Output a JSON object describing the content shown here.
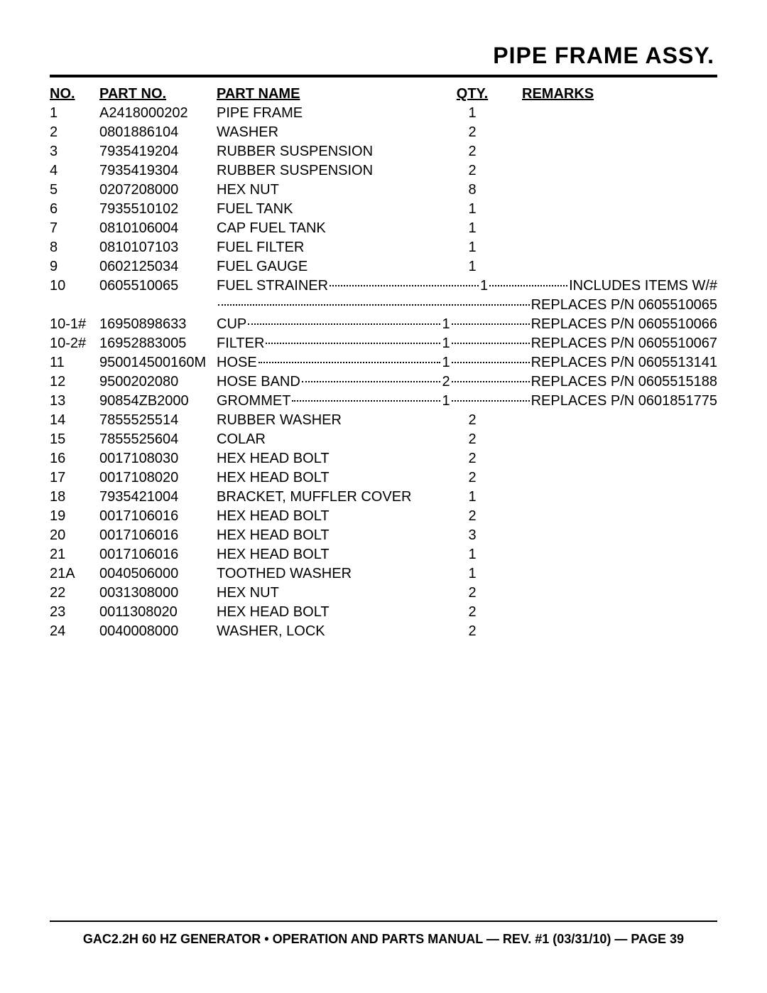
{
  "title": "PIPE FRAME ASSY.",
  "headers": {
    "no": "NO.",
    "partNo": "PART NO.",
    "partName": "PART NAME",
    "qty": "QTY.",
    "remarks": "REMARKS"
  },
  "rows": [
    {
      "no": "1",
      "pn": "A2418000202",
      "name": "PIPE FRAME",
      "qty": "1"
    },
    {
      "no": "2",
      "pn": "0801886104",
      "name": "WASHER",
      "qty": "2"
    },
    {
      "no": "3",
      "pn": "7935419204",
      "name": "RUBBER SUSPENSION",
      "qty": "2"
    },
    {
      "no": "4",
      "pn": "7935419304",
      "name": "RUBBER SUSPENSION",
      "qty": "2"
    },
    {
      "no": "5",
      "pn": "0207208000",
      "name": "HEX NUT",
      "qty": "8"
    },
    {
      "no": "6",
      "pn": "7935510102",
      "name": "FUEL TANK",
      "qty": "1"
    },
    {
      "no": "7",
      "pn": "0810106004",
      "name": "CAP FUEL TANK",
      "qty": "1"
    },
    {
      "no": "8",
      "pn": "0810107103",
      "name": "FUEL FILTER",
      "qty": "1"
    },
    {
      "no": "9",
      "pn": "0602125034",
      "name": "FUEL GAUGE",
      "qty": "1"
    },
    {
      "no": "10",
      "pn": "0605510065",
      "name": "FUEL STRAINER",
      "qty": "1",
      "rem": "INCLUDES ITEMS W/#",
      "leader": true
    },
    {
      "no": "",
      "pn": "",
      "name": "",
      "qty": "",
      "rem": "REPLACES P/N 0605510065",
      "leaderCont": true
    },
    {
      "no": "10-1#",
      "pn": "16950898633",
      "name": "CUP ",
      "qty": "1",
      "rem": "REPLACES P/N 0605510066",
      "leader": true
    },
    {
      "no": "10-2#",
      "pn": "16952883005",
      "name": "FILTER",
      "qty": "1",
      "rem": "REPLACES P/N 0605510067",
      "leader": true
    },
    {
      "no": "11",
      "pn": "950014500160M",
      "name": "HOSE",
      "qty": "1",
      "rem": "REPLACES P/N 0605513141",
      "leader": true
    },
    {
      "no": "12",
      "pn": "9500202080",
      "name": "HOSE BAND",
      "qty": "2",
      "rem": "REPLACES P/N 0605515188",
      "leader": true
    },
    {
      "no": "13",
      "pn": "90854ZB2000",
      "name": "GROMMET ",
      "qty": "1",
      "rem": "REPLACES P/N 0601851775",
      "leader": true
    },
    {
      "no": "14",
      "pn": "7855525514",
      "name": "RUBBER WASHER",
      "qty": "2"
    },
    {
      "no": "15",
      "pn": "7855525604",
      "name": "COLAR",
      "qty": "2"
    },
    {
      "no": "16",
      "pn": "0017108030",
      "name": "HEX HEAD BOLT",
      "qty": "2"
    },
    {
      "no": "17",
      "pn": "0017108020",
      "name": "HEX HEAD BOLT",
      "qty": "2"
    },
    {
      "no": "18",
      "pn": "7935421004",
      "name": "BRACKET, MUFFLER COVER",
      "qty": "1"
    },
    {
      "no": "19",
      "pn": "0017106016",
      "name": "HEX HEAD BOLT",
      "qty": "2"
    },
    {
      "no": "20",
      "pn": "0017106016",
      "name": "HEX HEAD BOLT",
      "qty": "3"
    },
    {
      "no": "21",
      "pn": "0017106016",
      "name": "HEX HEAD BOLT",
      "qty": "1"
    },
    {
      "no": "21A",
      "pn": "0040506000",
      "name": "TOOTHED WASHER",
      "qty": "1"
    },
    {
      "no": "22",
      "pn": "0031308000",
      "name": "HEX NUT",
      "qty": "2"
    },
    {
      "no": "23",
      "pn": "0011308020",
      "name": "HEX HEAD BOLT",
      "qty": "2"
    },
    {
      "no": "24",
      "pn": "0040008000",
      "name": "WASHER, LOCK",
      "qty": "2"
    }
  ],
  "footer": "GAC2.2H 60 HZ GENERATOR • OPERATION AND PARTS MANUAL — REV. #1 (03/31/10) — PAGE 39"
}
